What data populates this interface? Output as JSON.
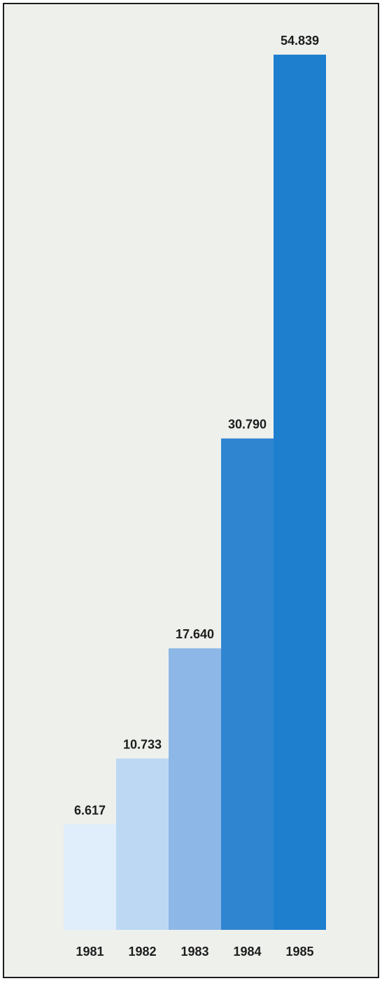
{
  "chart_data": {
    "type": "bar",
    "categories": [
      "1981",
      "1982",
      "1983",
      "1984",
      "1985"
    ],
    "values": [
      6.617,
      10.733,
      17.64,
      30.79,
      54.839
    ],
    "value_labels": [
      "6.617",
      "10.733",
      "17.640",
      "30.790",
      "54.839"
    ],
    "title": "",
    "xlabel": "",
    "ylabel": "",
    "ylim": [
      0,
      54.839
    ],
    "grid": false,
    "legend": "none",
    "colors": [
      "#e0edfa",
      "#bcd8f3",
      "#8cb7e6",
      "#2f85cf",
      "#1e7fcf"
    ]
  }
}
